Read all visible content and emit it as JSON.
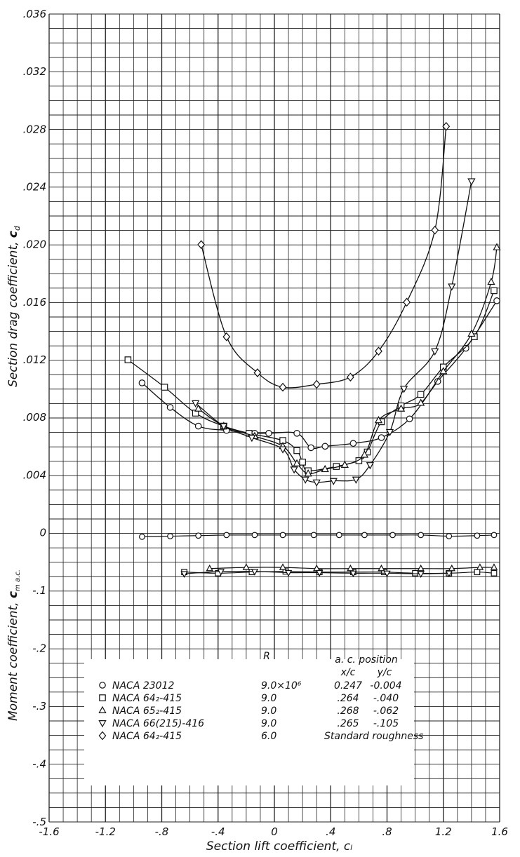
{
  "chart_data": {
    "type": "line",
    "x_axis": {
      "label": "Section lift coefficient, cₗ",
      "ticks": [
        "-1.6",
        "-1.2",
        "-.8",
        "-.4",
        "0",
        ".4",
        ".8",
        "1.2",
        "1.6"
      ],
      "range": [
        -1.6,
        1.6
      ]
    },
    "drag_axis": {
      "label": "Section drag coefficient, cₑ",
      "label_main": "Section drag coefficient, ",
      "label_symbol": "c",
      "label_sub": "d",
      "ticks": [
        ".036",
        ".032",
        ".028",
        ".024",
        ".020",
        ".016",
        ".012",
        ".008",
        ".004",
        "0"
      ],
      "range": [
        0,
        0.036
      ]
    },
    "moment_axis": {
      "label_main": "Moment coefficient, ",
      "label_symbol": "c",
      "label_sub": "m a.c.",
      "ticks": [
        "-.1",
        "-.2",
        "-.3",
        "-.4",
        "-.5"
      ],
      "range": [
        -0.5,
        0
      ]
    },
    "grid": true,
    "legend": {
      "header_R": "R",
      "header_ac": "a. c. position",
      "header_xc": "x/c",
      "header_yc": "y/c",
      "rows": [
        {
          "marker": "circle",
          "name": "NACA 23012",
          "R": "9.0×10⁶",
          "xc": "0.247",
          "yc": "-0.004"
        },
        {
          "marker": "square",
          "name": "NACA 64₂-415",
          "R": "9.0",
          "xc": ".264",
          "yc": "-.040"
        },
        {
          "marker": "triangle-up",
          "name": "NACA 65₂-415",
          "R": "9.0",
          "xc": ".268",
          "yc": "-.062"
        },
        {
          "marker": "triangle-down",
          "name": "NACA 66(215)-416",
          "R": "9.0",
          "xc": ".265",
          "yc": "-.105"
        },
        {
          "marker": "diamond",
          "name": "NACA 64₂-415",
          "R": "6.0",
          "xc": "",
          "yc": "",
          "note": "Standard roughness"
        }
      ]
    },
    "series": [
      {
        "name": "NACA 23012",
        "marker": "circle",
        "drag": [
          [
            -0.94,
            0.0104
          ],
          [
            -0.74,
            0.0087
          ],
          [
            -0.54,
            0.0074
          ],
          [
            -0.34,
            0.0071
          ],
          [
            -0.14,
            0.0069
          ],
          [
            -0.04,
            0.0069
          ],
          [
            0.16,
            0.0069
          ],
          [
            0.26,
            0.0059
          ],
          [
            0.36,
            0.006
          ],
          [
            0.56,
            0.0062
          ],
          [
            0.76,
            0.0066
          ],
          [
            0.96,
            0.0079
          ],
          [
            1.16,
            0.0105
          ],
          [
            1.36,
            0.0128
          ],
          [
            1.58,
            0.0161
          ]
        ],
        "moment": [
          [
            -0.94,
            -0.007
          ],
          [
            -0.74,
            -0.006
          ],
          [
            -0.54,
            -0.005
          ],
          [
            -0.34,
            -0.004
          ],
          [
            -0.14,
            -0.004
          ],
          [
            0.06,
            -0.004
          ],
          [
            0.28,
            -0.004
          ],
          [
            0.46,
            -0.004
          ],
          [
            0.64,
            -0.004
          ],
          [
            0.84,
            -0.004
          ],
          [
            1.04,
            -0.004
          ],
          [
            1.24,
            -0.006
          ],
          [
            1.44,
            -0.005
          ],
          [
            1.56,
            -0.004
          ]
        ]
      },
      {
        "name": "NACA 64₂-415",
        "marker": "square",
        "drag": [
          [
            -1.04,
            0.012
          ],
          [
            -0.78,
            0.0101
          ],
          [
            -0.56,
            0.0083
          ],
          [
            -0.36,
            0.0074
          ],
          [
            -0.18,
            0.0069
          ],
          [
            0.06,
            0.0064
          ],
          [
            0.16,
            0.0057
          ],
          [
            0.2,
            0.0049
          ],
          [
            0.24,
            0.0043
          ],
          [
            0.44,
            0.0046
          ],
          [
            0.6,
            0.005
          ],
          [
            0.66,
            0.0056
          ],
          [
            0.76,
            0.0077
          ],
          [
            0.9,
            0.0088
          ],
          [
            1.04,
            0.0096
          ],
          [
            1.2,
            0.0115
          ],
          [
            1.42,
            0.0136
          ],
          [
            1.56,
            0.0168
          ]
        ],
        "moment": [
          [
            -0.64,
            -0.068
          ],
          [
            -0.4,
            -0.07
          ],
          [
            -0.16,
            -0.068
          ],
          [
            0.08,
            -0.067
          ],
          [
            0.32,
            -0.068
          ],
          [
            0.56,
            -0.068
          ],
          [
            0.78,
            -0.068
          ],
          [
            1.0,
            -0.07
          ],
          [
            1.24,
            -0.07
          ],
          [
            1.44,
            -0.068
          ],
          [
            1.56,
            -0.07
          ]
        ]
      },
      {
        "name": "NACA 65₂-415",
        "marker": "triangle-up",
        "drag": [
          [
            -0.54,
            0.0086
          ],
          [
            -0.36,
            0.0074
          ],
          [
            -0.14,
            0.0067
          ],
          [
            0.06,
            0.006
          ],
          [
            0.16,
            0.0048
          ],
          [
            0.24,
            0.0041
          ],
          [
            0.36,
            0.0044
          ],
          [
            0.5,
            0.0047
          ],
          [
            0.64,
            0.0054
          ],
          [
            0.74,
            0.0078
          ],
          [
            0.9,
            0.0086
          ],
          [
            1.04,
            0.009
          ],
          [
            1.2,
            0.0112
          ],
          [
            1.4,
            0.0138
          ],
          [
            1.54,
            0.0174
          ],
          [
            1.58,
            0.0198
          ]
        ],
        "moment": [
          [
            -0.46,
            -0.062
          ],
          [
            -0.2,
            -0.06
          ],
          [
            0.06,
            -0.06
          ],
          [
            0.3,
            -0.062
          ],
          [
            0.54,
            -0.062
          ],
          [
            0.76,
            -0.062
          ],
          [
            1.04,
            -0.062
          ],
          [
            1.26,
            -0.062
          ],
          [
            1.46,
            -0.06
          ],
          [
            1.56,
            -0.06
          ]
        ]
      },
      {
        "name": "NACA 66(215)-416",
        "marker": "triangle-down",
        "drag": [
          [
            -0.56,
            0.009
          ],
          [
            -0.36,
            0.0074
          ],
          [
            -0.16,
            0.0066
          ],
          [
            0.06,
            0.0058
          ],
          [
            0.14,
            0.0044
          ],
          [
            0.22,
            0.0037
          ],
          [
            0.3,
            0.0035
          ],
          [
            0.42,
            0.0036
          ],
          [
            0.58,
            0.0037
          ],
          [
            0.68,
            0.0047
          ],
          [
            0.82,
            0.007
          ],
          [
            0.92,
            0.01
          ],
          [
            1.14,
            0.0126
          ],
          [
            1.26,
            0.0171
          ],
          [
            1.4,
            0.0244
          ]
        ],
        "moment": [
          [
            -0.64,
            -0.071
          ],
          [
            -0.38,
            -0.067
          ],
          [
            -0.14,
            -0.067
          ],
          [
            0.1,
            -0.069
          ],
          [
            0.32,
            -0.069
          ],
          [
            0.56,
            -0.07
          ],
          [
            0.8,
            -0.07
          ],
          [
            1.04,
            -0.071
          ],
          [
            1.24,
            -0.07
          ]
        ]
      },
      {
        "name": "NACA 64₂-415",
        "marker": "diamond",
        "drag": [
          [
            -0.52,
            0.02
          ],
          [
            -0.34,
            0.0136
          ],
          [
            -0.12,
            0.0111
          ],
          [
            0.06,
            0.0101
          ],
          [
            0.3,
            0.0103
          ],
          [
            0.54,
            0.0108
          ],
          [
            0.74,
            0.0126
          ],
          [
            0.94,
            0.016
          ],
          [
            1.14,
            0.021
          ],
          [
            1.22,
            0.0282
          ]
        ],
        "moment": []
      }
    ]
  }
}
